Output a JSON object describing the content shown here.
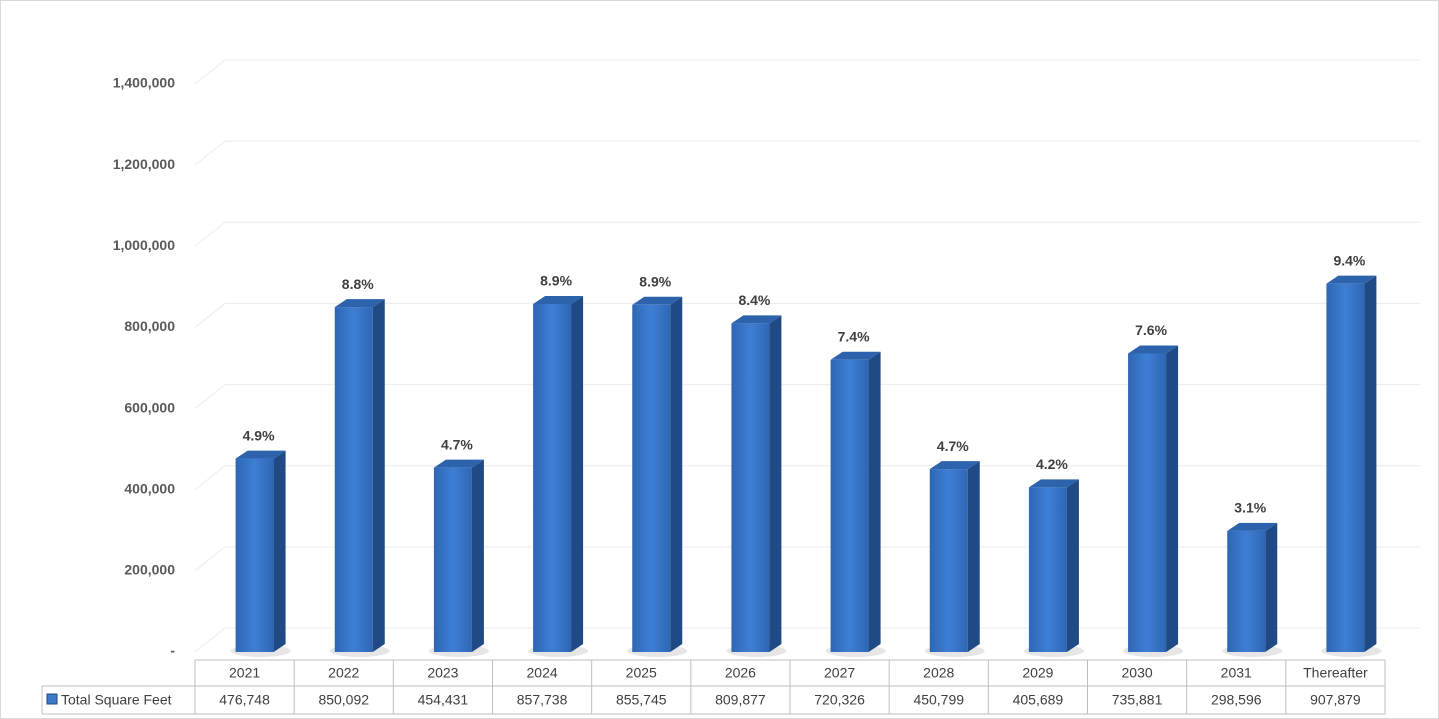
{
  "chart_data": {
    "type": "bar",
    "categories": [
      "2021",
      "2022",
      "2023",
      "2024",
      "2025",
      "2026",
      "2027",
      "2028",
      "2029",
      "2030",
      "2031",
      "Thereafter"
    ],
    "series": [
      {
        "name": "Total Square Feet",
        "color": "#3a78c9",
        "values": [
          476748,
          850092,
          454431,
          857738,
          855745,
          809877,
          720326,
          450799,
          405689,
          735881,
          298596,
          907879
        ],
        "value_labels": [
          "476,748",
          "850,092",
          "454,431",
          "857,738",
          "855,745",
          "809,877",
          "720,326",
          "450,799",
          "405,689",
          "735,881",
          "298,596",
          "907,879"
        ]
      }
    ],
    "annotations": [
      "4.9%",
      "8.8%",
      "4.7%",
      "8.9%",
      "8.9%",
      "8.4%",
      "7.4%",
      "4.7%",
      "4.2%",
      "7.6%",
      "3.1%",
      "9.4%"
    ],
    "ylim": [
      0,
      1400000
    ],
    "yticks": [
      {
        "value": 0,
        "label": "-"
      },
      {
        "value": 200000,
        "label": "200,000"
      },
      {
        "value": 400000,
        "label": "400,000"
      },
      {
        "value": 600000,
        "label": "600,000"
      },
      {
        "value": 800000,
        "label": "800,000"
      },
      {
        "value": 1000000,
        "label": "1,000,000"
      },
      {
        "value": 1200000,
        "label": "1,200,000"
      },
      {
        "value": 1400000,
        "label": "1,400,000"
      }
    ],
    "grid": true,
    "data_table": true
  }
}
